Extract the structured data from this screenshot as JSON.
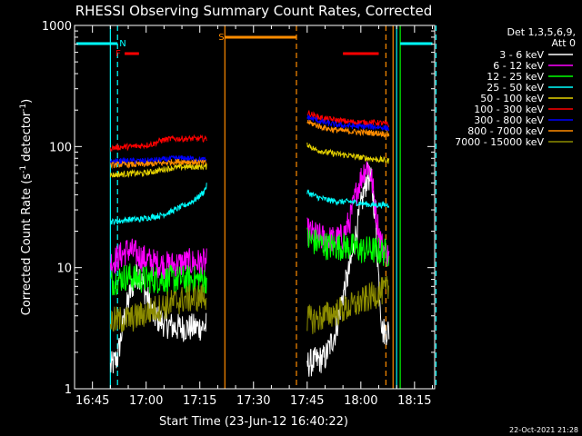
{
  "chart_data": {
    "type": "line",
    "title": "RHESSI Observing Summary Count Rates, Corrected",
    "xlabel": "Start Time (23-Jun-12 16:40:22)",
    "ylabel_main": "Corrected Count Rate (s",
    "ylabel_exp1": "-1",
    "ylabel_mid": " detector",
    "ylabel_exp2": "-1",
    "ylabel_end": ")",
    "yscale": "log",
    "ylim": [
      1,
      1000
    ],
    "xlim": [
      "16:40:22",
      "18:21:00"
    ],
    "y_ticks": [
      {
        "value": 1,
        "label": "1"
      },
      {
        "value": 10,
        "label": "10"
      },
      {
        "value": 100,
        "label": "100"
      },
      {
        "value": 1000,
        "label": "1000"
      }
    ],
    "x_ticks": [
      {
        "minutes": 5,
        "label": "16:45"
      },
      {
        "minutes": 20,
        "label": "17:00"
      },
      {
        "minutes": 35,
        "label": "17:15"
      },
      {
        "minutes": 50,
        "label": "17:30"
      },
      {
        "minutes": 65,
        "label": "17:45"
      },
      {
        "minutes": 80,
        "label": "18:00"
      },
      {
        "minutes": 95,
        "label": "18:15"
      }
    ],
    "legend": {
      "placement": "right",
      "header_lines": [
        "Det 1,3,5,6,9,",
        "Att 0"
      ]
    },
    "series": [
      {
        "name": "3 - 6 keV",
        "color": "#ffffff",
        "orbit1": [
          [
            10,
            1.5
          ],
          [
            12,
            1.8
          ],
          [
            14,
            4
          ],
          [
            16,
            7
          ],
          [
            18,
            9
          ],
          [
            20,
            6
          ],
          [
            22,
            4
          ],
          [
            25,
            3.5
          ],
          [
            28,
            3.2
          ],
          [
            31,
            3.2
          ],
          [
            34,
            3.2
          ],
          [
            37,
            3.3
          ]
        ],
        "orbit2": [
          [
            65,
            1.6
          ],
          [
            70,
            1.8
          ],
          [
            73,
            3
          ],
          [
            75,
            6
          ],
          [
            77,
            10
          ],
          [
            79,
            22
          ],
          [
            81,
            45
          ],
          [
            82,
            58
          ],
          [
            83,
            50
          ],
          [
            84,
            28
          ],
          [
            85,
            8
          ],
          [
            86,
            3
          ],
          [
            88,
            3
          ]
        ]
      },
      {
        "name": "6 - 12 keV",
        "color": "#ff00ff",
        "orbit1": [
          [
            10,
            11
          ],
          [
            12,
            12
          ],
          [
            15,
            14
          ],
          [
            17,
            13
          ],
          [
            19,
            12
          ],
          [
            22,
            11
          ],
          [
            25,
            10.5
          ],
          [
            28,
            10.5
          ],
          [
            31,
            11
          ],
          [
            34,
            11
          ],
          [
            37,
            11
          ]
        ],
        "orbit2": [
          [
            65,
            20
          ],
          [
            68,
            18
          ],
          [
            71,
            17
          ],
          [
            73,
            17
          ],
          [
            75,
            18
          ],
          [
            77,
            25
          ],
          [
            79,
            45
          ],
          [
            81,
            65
          ],
          [
            82,
            70
          ],
          [
            83,
            55
          ],
          [
            84,
            32
          ],
          [
            85,
            20
          ],
          [
            86,
            15
          ],
          [
            88,
            12
          ]
        ]
      },
      {
        "name": "12 - 25 keV",
        "color": "#00ff00",
        "orbit1": [
          [
            10,
            7.5
          ],
          [
            12,
            8
          ],
          [
            15,
            8.5
          ],
          [
            18,
            8
          ],
          [
            22,
            8
          ],
          [
            25,
            8
          ],
          [
            28,
            8
          ],
          [
            31,
            8
          ],
          [
            34,
            8
          ],
          [
            37,
            8
          ]
        ],
        "orbit2": [
          [
            65,
            17
          ],
          [
            68,
            16
          ],
          [
            71,
            15
          ],
          [
            74,
            15
          ],
          [
            77,
            15
          ],
          [
            80,
            14
          ],
          [
            83,
            14
          ],
          [
            86,
            13.5
          ],
          [
            88,
            13
          ]
        ]
      },
      {
        "name": "25 - 50 keV",
        "color": "#00ffff",
        "orbit1": [
          [
            10,
            24
          ],
          [
            12,
            24
          ],
          [
            15,
            25
          ],
          [
            18,
            25
          ],
          [
            21,
            26
          ],
          [
            24,
            27
          ],
          [
            27,
            29
          ],
          [
            30,
            32
          ],
          [
            32,
            34
          ],
          [
            34,
            37
          ],
          [
            36,
            42
          ],
          [
            37,
            48
          ]
        ],
        "orbit2": [
          [
            65,
            42
          ],
          [
            68,
            38
          ],
          [
            71,
            36
          ],
          [
            74,
            35
          ],
          [
            77,
            35
          ],
          [
            80,
            34
          ],
          [
            83,
            33
          ],
          [
            86,
            33
          ],
          [
            88,
            33
          ]
        ]
      },
      {
        "name": "50 - 100 keV",
        "color": "#e6d200",
        "orbit1": [
          [
            10,
            58
          ],
          [
            13,
            59
          ],
          [
            16,
            60
          ],
          [
            19,
            60
          ],
          [
            22,
            62
          ],
          [
            25,
            65
          ],
          [
            28,
            67
          ],
          [
            31,
            68
          ],
          [
            34,
            68
          ],
          [
            37,
            68
          ]
        ],
        "orbit2": [
          [
            65,
            105
          ],
          [
            67,
            95
          ],
          [
            70,
            90
          ],
          [
            73,
            87
          ],
          [
            76,
            85
          ],
          [
            79,
            82
          ],
          [
            82,
            80
          ],
          [
            85,
            78
          ],
          [
            88,
            76
          ]
        ]
      },
      {
        "name": "100 - 300 keV",
        "color": "#ff0000",
        "orbit1": [
          [
            10,
            97
          ],
          [
            13,
            99
          ],
          [
            16,
            100
          ],
          [
            19,
            102
          ],
          [
            22,
            105
          ],
          [
            24,
            112
          ],
          [
            27,
            116
          ],
          [
            30,
            116
          ],
          [
            33,
            116
          ],
          [
            37,
            116
          ]
        ],
        "orbit2": [
          [
            65,
            190
          ],
          [
            67,
            180
          ],
          [
            69,
            172
          ],
          [
            71,
            168
          ],
          [
            74,
            164
          ],
          [
            77,
            160
          ],
          [
            80,
            158
          ],
          [
            83,
            158
          ],
          [
            86,
            156
          ],
          [
            88,
            150
          ]
        ]
      },
      {
        "name": "300 - 800 keV",
        "color": "#0000ff",
        "orbit1": [
          [
            10,
            75
          ],
          [
            13,
            76
          ],
          [
            16,
            76
          ],
          [
            19,
            76
          ],
          [
            22,
            77
          ],
          [
            25,
            78
          ],
          [
            28,
            80
          ],
          [
            31,
            80
          ],
          [
            34,
            79
          ],
          [
            37,
            77
          ]
        ],
        "orbit2": [
          [
            65,
            175
          ],
          [
            67,
            168
          ],
          [
            69,
            160
          ],
          [
            71,
            155
          ],
          [
            74,
            150
          ],
          [
            77,
            148
          ],
          [
            80,
            146
          ],
          [
            83,
            146
          ],
          [
            86,
            144
          ],
          [
            88,
            140
          ]
        ]
      },
      {
        "name": "800 - 7000 keV",
        "color": "#ff8c00",
        "orbit1": [
          [
            10,
            70
          ],
          [
            13,
            71
          ],
          [
            16,
            71
          ],
          [
            19,
            71
          ],
          [
            22,
            72
          ],
          [
            25,
            73
          ],
          [
            28,
            75
          ],
          [
            31,
            75
          ],
          [
            34,
            74
          ],
          [
            37,
            73
          ]
        ],
        "orbit2": [
          [
            65,
            160
          ],
          [
            67,
            152
          ],
          [
            69,
            145
          ],
          [
            71,
            140
          ],
          [
            74,
            136
          ],
          [
            77,
            133
          ],
          [
            80,
            131
          ],
          [
            83,
            130
          ],
          [
            86,
            128
          ],
          [
            88,
            125
          ]
        ]
      },
      {
        "name": "7000 - 15000 keV",
        "color": "#8c8c00",
        "orbit1": [
          [
            10,
            3.6
          ],
          [
            13,
            3.7
          ],
          [
            16,
            3.8
          ],
          [
            19,
            4.1
          ],
          [
            22,
            4.5
          ],
          [
            25,
            4.8
          ],
          [
            28,
            5.2
          ],
          [
            31,
            5.5
          ],
          [
            34,
            5.6
          ],
          [
            37,
            5.8
          ]
        ],
        "orbit2": [
          [
            65,
            3.8
          ],
          [
            67,
            3.7
          ],
          [
            70,
            4.0
          ],
          [
            73,
            4.3
          ],
          [
            76,
            4.6
          ],
          [
            79,
            5.0
          ],
          [
            82,
            5.6
          ],
          [
            85,
            6.2
          ],
          [
            88,
            6.7
          ]
        ]
      }
    ],
    "markers": {
      "night_bars": [
        {
          "label": "",
          "color": "#00ffff",
          "x_start": 0.5,
          "x_end": 12
        },
        {
          "label": "",
          "color": "#00ffff",
          "x_start": 91,
          "x_end": 100
        }
      ],
      "saa_bar": {
        "label": "S",
        "color": "#ff8c00",
        "x_start": 42,
        "x_end": 62
      },
      "flare_bars": [
        {
          "label": "F",
          "color": "#ff0000",
          "x_start": 14,
          "x_end": 18
        },
        {
          "label": "",
          "color": "#ff0000",
          "x_start": 75,
          "x_end": 85
        }
      ],
      "n_label": {
        "label": "N",
        "color": "#00ffff",
        "x": 12
      },
      "vlines_cyan_solid": [
        10,
        90
      ],
      "vlines_cyan_dashed": [
        12,
        101
      ],
      "vlines_orange_solid": [
        42,
        89
      ],
      "vlines_orange_dashed": [
        62,
        87
      ],
      "vlines_green_solid": [
        91
      ]
    }
  },
  "footer": {
    "timestamp": "22-Oct-2021 21:28"
  }
}
